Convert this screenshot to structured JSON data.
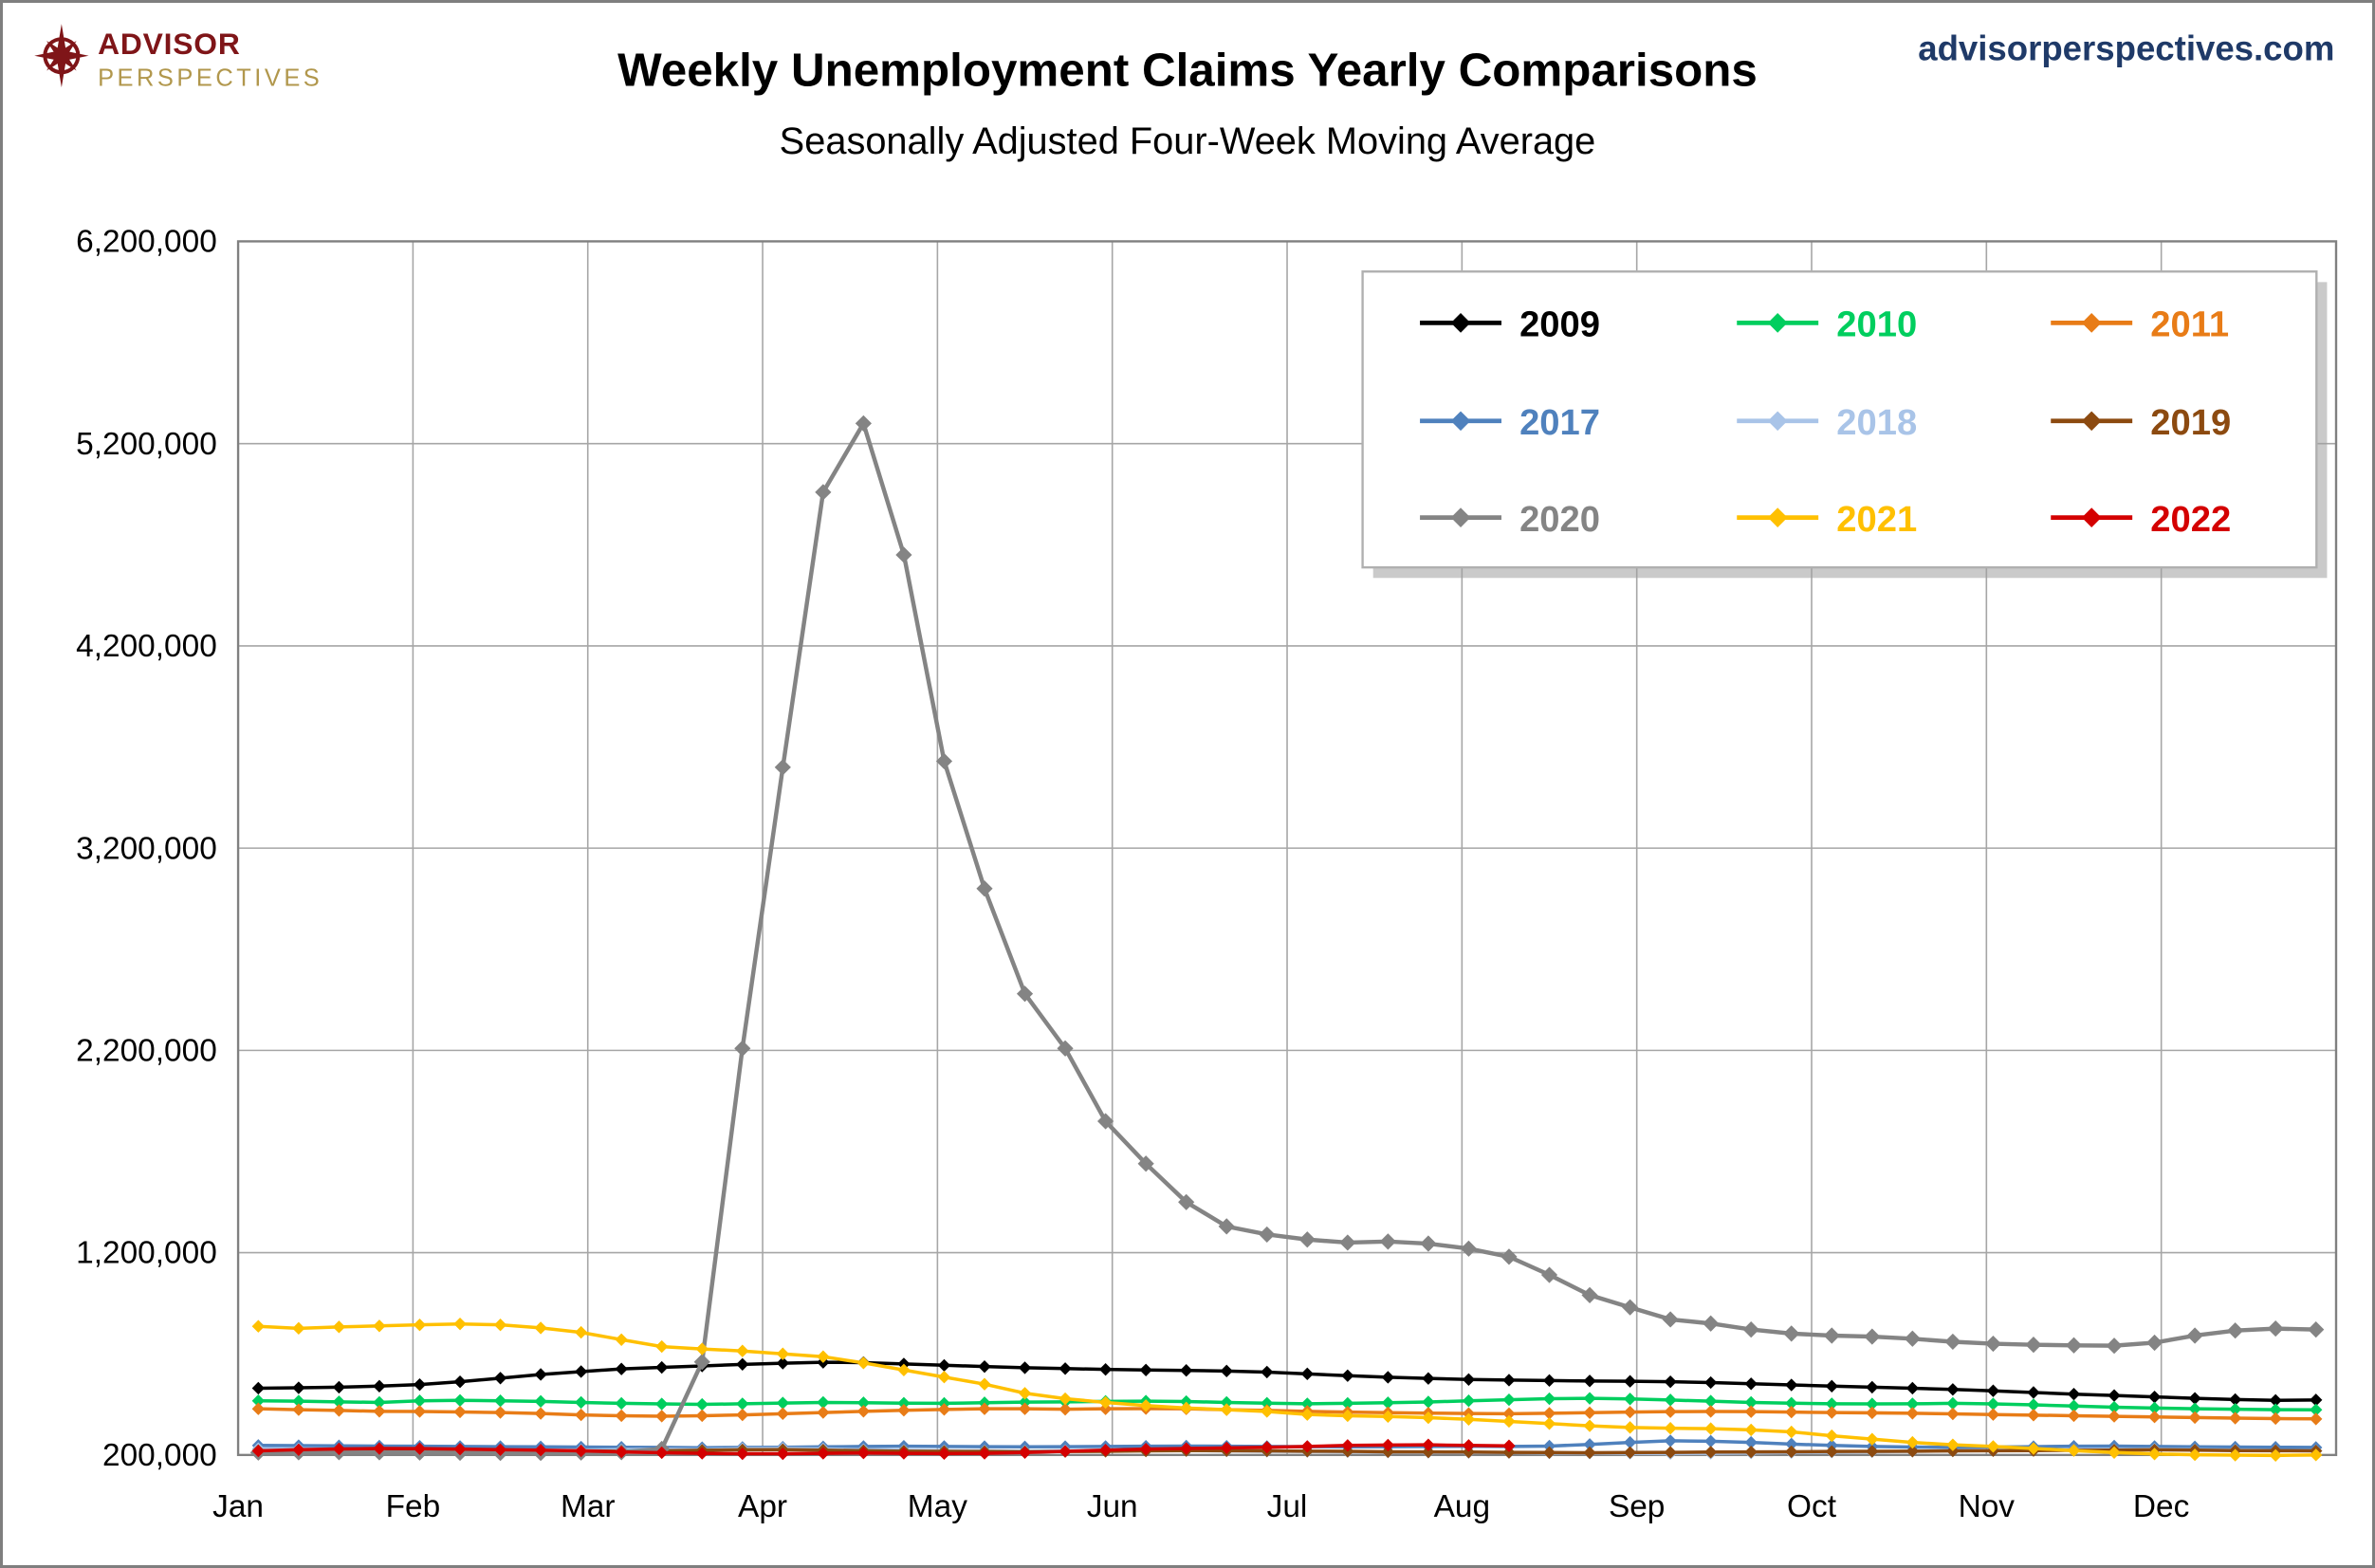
{
  "logo": {
    "line1": "ADVISOR",
    "line2": "PERSPECTIVES"
  },
  "website": "advisorperspectives.com",
  "chart_data": {
    "type": "line",
    "title": "Weekly Unemployment Claims Yearly Comparisons",
    "subtitle": "Seasonally Adjusted Four-Week Moving Average",
    "xlabel": "",
    "ylabel": "",
    "x_unit": "week of year (weekly data points, Jan through Dec)",
    "weeks_per_year": 52,
    "months": [
      "Jan",
      "Feb",
      "Mar",
      "Apr",
      "May",
      "Jun",
      "Jul",
      "Aug",
      "Sep",
      "Oct",
      "Nov",
      "Dec"
    ],
    "ylim": [
      200000,
      6200000
    ],
    "y_ticks": [
      200000,
      1200000,
      2200000,
      3200000,
      4200000,
      5200000,
      6200000
    ],
    "grid": true,
    "legend_position": "top-right",
    "marker": "diamond",
    "series": [
      {
        "name": "2009",
        "color": "#000000",
        "values": [
          530000,
          532000,
          535000,
          540000,
          548000,
          562000,
          580000,
          598000,
          612000,
          625000,
          633000,
          640000,
          648000,
          654000,
          658000,
          657000,
          650000,
          643000,
          637000,
          631000,
          627000,
          623000,
          620000,
          618000,
          615000,
          610000,
          601000,
          592000,
          584000,
          578000,
          573000,
          570000,
          568000,
          566000,
          564000,
          562000,
          558000,
          552000,
          546000,
          540000,
          535000,
          530000,
          524000,
          517000,
          509000,
          501000,
          494000,
          487000,
          480000,
          474000,
          470000,
          472000
        ]
      },
      {
        "name": "2010",
        "color": "#00CE5E",
        "values": [
          468000,
          466000,
          463000,
          460000,
          468000,
          470000,
          468000,
          465000,
          460000,
          455000,
          452000,
          450000,
          453000,
          457000,
          460000,
          458000,
          456000,
          455000,
          458000,
          461000,
          463000,
          465000,
          466000,
          464000,
          460000,
          456000,
          453000,
          455000,
          458000,
          462000,
          468000,
          473000,
          478000,
          480000,
          477000,
          472000,
          466000,
          460000,
          456000,
          453000,
          452000,
          453000,
          455000,
          452000,
          448000,
          442000,
          436000,
          432000,
          428000,
          426000,
          424000,
          423000
        ]
      },
      {
        "name": "2011",
        "color": "#E87C17",
        "values": [
          428000,
          424000,
          420000,
          416000,
          415000,
          413000,
          410000,
          405000,
          398000,
          394000,
          392000,
          394000,
          398000,
          404000,
          410000,
          416000,
          421000,
          425000,
          428000,
          428000,
          426000,
          428000,
          429000,
          428000,
          424000,
          420000,
          416000,
          412000,
          409000,
          407000,
          405000,
          404000,
          406000,
          409000,
          412000,
          414000,
          415000,
          414000,
          412000,
          410000,
          408000,
          406000,
          403000,
          400000,
          397000,
          394000,
          391000,
          388000,
          385000,
          382000,
          380000,
          378000
        ]
      },
      {
        "name": "2017",
        "color": "#4F81BD",
        "values": [
          247000,
          246000,
          245000,
          244000,
          243000,
          242000,
          241000,
          240000,
          239000,
          238000,
          237000,
          236000,
          237000,
          238000,
          240000,
          242000,
          243000,
          242000,
          241000,
          240000,
          241000,
          242000,
          243000,
          244000,
          243000,
          242000,
          241000,
          240000,
          241000,
          242000,
          243000,
          242000,
          244000,
          252000,
          262000,
          270000,
          268000,
          262000,
          254000,
          247000,
          242000,
          239000,
          238000,
          239000,
          241000,
          243000,
          244000,
          242000,
          240000,
          239000,
          238000,
          237000
        ]
      },
      {
        "name": "2018",
        "color": "#A9C4E8",
        "values": [
          231000,
          230000,
          228000,
          226000,
          225000,
          224000,
          223000,
          222000,
          224000,
          226000,
          228000,
          226000,
          231000,
          233000,
          230000,
          226000,
          223000,
          221000,
          220000,
          219000,
          221000,
          223000,
          224000,
          222000,
          220000,
          218000,
          217000,
          216000,
          214000,
          213000,
          212000,
          212000,
          210000,
          209000,
          208000,
          207000,
          208000,
          210000,
          212000,
          214000,
          216000,
          218000,
          220000,
          222000,
          224000,
          225000,
          226000,
          228000,
          226000,
          224000,
          222000,
          221000
        ]
      },
      {
        "name": "2019",
        "color": "#8C4A10",
        "values": [
          222000,
          221000,
          223000,
          225000,
          226000,
          225000,
          223000,
          221000,
          220000,
          219000,
          221000,
          223000,
          225000,
          226000,
          224000,
          221000,
          219000,
          218000,
          217000,
          216000,
          217000,
          218000,
          220000,
          222000,
          221000,
          220000,
          219000,
          218000,
          216000,
          215000,
          214000,
          213000,
          212000,
          211000,
          212000,
          213000,
          214000,
          215000,
          216000,
          217000,
          218000,
          219000,
          220000,
          221000,
          222000,
          223000,
          224000,
          225000,
          224000,
          222000,
          221000,
          220000
        ]
      },
      {
        "name": "2020",
        "color": "#848484",
        "line_width": 2.8,
        "marker_size": 5.4,
        "values": [
          212000,
          213000,
          214000,
          213000,
          212000,
          211000,
          210000,
          210000,
          212000,
          214000,
          230000,
          660000,
          2210000,
          3600000,
          4960000,
          5300000,
          4650000,
          3630000,
          3000000,
          2480000,
          2210000,
          1850000,
          1640000,
          1450000,
          1330000,
          1290000,
          1265000,
          1250000,
          1255000,
          1245000,
          1220000,
          1180000,
          1090000,
          990000,
          930000,
          870000,
          850000,
          820000,
          800000,
          790000,
          785000,
          775000,
          760000,
          750000,
          745000,
          742000,
          740000,
          755000,
          790000,
          815000,
          825000,
          820000
        ]
      },
      {
        "name": "2021",
        "color": "#FFC000",
        "values": [
          836000,
          826000,
          833000,
          838000,
          843000,
          848000,
          843000,
          828000,
          806000,
          770000,
          736000,
          724000,
          714000,
          700000,
          686000,
          655000,
          620000,
          585000,
          550000,
          505000,
          478000,
          460000,
          444000,
          432000,
          424000,
          415000,
          400000,
          394000,
          390000,
          384000,
          376000,
          366000,
          355000,
          344000,
          336000,
          332000,
          330000,
          324000,
          314000,
          295000,
          278000,
          262000,
          250000,
          242000,
          232000,
          222000,
          212000,
          205000,
          201000,
          199000,
          198000,
          200000
        ]
      },
      {
        "name": "2022",
        "color": "#D40000",
        "values": [
          220000,
          226000,
          230000,
          232000,
          231000,
          229000,
          226000,
          224000,
          220000,
          215000,
          211000,
          208000,
          206000,
          206000,
          208000,
          210000,
          208000,
          207000,
          208000,
          212000,
          218000,
          224000,
          229000,
          232000,
          235000,
          238000,
          242000,
          247000,
          249000,
          250000,
          247000,
          245000
        ]
      }
    ]
  }
}
